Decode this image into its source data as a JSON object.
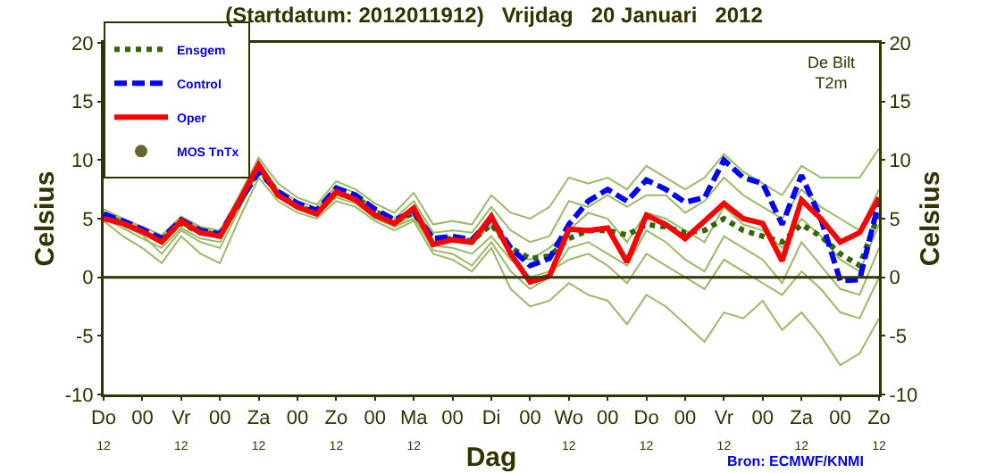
{
  "chart_data": {
    "type": "line",
    "title": "(Startdatum: 2012011912)   Vrijdag   20 Januari   2012",
    "xlabel": "Dag",
    "ylabel": "Celsius",
    "y2label": "Celsius",
    "annotations": [
      "De Bilt\nT2m",
      "Bron: ECMWF/KNMI"
    ],
    "categories": [
      "Do\n12",
      null,
      "00",
      null,
      "Vr\n12",
      null,
      "00",
      null,
      "Za\n12",
      null,
      "00",
      null,
      "Zo\n12",
      null,
      "00",
      null,
      "Ma\n12",
      null,
      "00",
      null,
      "Di",
      null,
      "00",
      null,
      "Wo\n12",
      null,
      "00",
      null,
      "Do\n12",
      null,
      "00",
      null,
      "Vr\n12",
      null,
      "00",
      null,
      "Za\n12",
      null,
      "00",
      null,
      "Zo\n12"
    ],
    "ylim": [
      -10,
      20
    ],
    "yticks": [
      -10,
      -5,
      0,
      5,
      10,
      15,
      20
    ],
    "y2lim": [
      -10,
      20
    ],
    "y2ticks": [
      -10,
      -5,
      0,
      5,
      10,
      15,
      20
    ],
    "ref_lines": [
      {
        "axis": "y",
        "value": 0,
        "label": null,
        "color": "#333300"
      }
    ],
    "grid": false,
    "legend": "top left",
    "marker": "none",
    "series": [
      {
        "color": "#99bb66",
        "line_style": "solid",
        "values": [
          5.8,
          5.0,
          4.3,
          3.6,
          5.2,
          4.3,
          4.0,
          7.0,
          10.2,
          8.0,
          6.8,
          6.2,
          8.2,
          7.5,
          6.3,
          5.5,
          7.2,
          4.5,
          4.8,
          4.5,
          7.0,
          5.5,
          5.0,
          6.0,
          8.5,
          8.0,
          8.5,
          7.5,
          9.5,
          8.5,
          7.5,
          8.5,
          10.5,
          9.0,
          8.0,
          7.0,
          9.5,
          8.5,
          8.5,
          8.5,
          11.0
        ]
      },
      {
        "color": "#99bb66",
        "line_style": "solid",
        "values": [
          4.8,
          3.5,
          2.5,
          1.2,
          3.5,
          2.0,
          1.2,
          5.0,
          8.5,
          6.5,
          5.5,
          5.0,
          6.5,
          6.0,
          4.8,
          4.0,
          4.8,
          2.0,
          1.5,
          0.5,
          2.5,
          -1.0,
          -2.5,
          -2.0,
          -0.5,
          -1.5,
          -2.0,
          -4.0,
          -1.5,
          -2.5,
          -4.0,
          -5.5,
          -3.0,
          -3.5,
          -2.0,
          -4.5,
          -3.0,
          -5.0,
          -7.5,
          -6.5,
          -3.5
        ]
      },
      {
        "color": "#99bb66",
        "line_style": "solid",
        "values": [
          5.5,
          4.8,
          4.0,
          3.4,
          5.0,
          4.2,
          3.8,
          6.8,
          9.8,
          7.5,
          6.5,
          5.9,
          7.8,
          7.2,
          5.8,
          5.0,
          6.5,
          3.8,
          4.0,
          3.8,
          6.0,
          4.0,
          3.0,
          3.5,
          6.5,
          6.0,
          7.0,
          6.0,
          7.0,
          7.0,
          5.5,
          6.5,
          8.5,
          7.0,
          6.0,
          5.0,
          7.5,
          6.0,
          5.0,
          4.0,
          7.5
        ]
      },
      {
        "color": "#99bb66",
        "line_style": "solid",
        "values": [
          5.0,
          4.2,
          3.3,
          2.5,
          4.2,
          3.3,
          3.0,
          6.0,
          9.0,
          6.8,
          5.8,
          5.2,
          6.8,
          6.3,
          5.0,
          4.3,
          5.0,
          2.7,
          2.5,
          2.0,
          3.5,
          1.5,
          0.0,
          0.5,
          1.5,
          2.0,
          1.0,
          -0.5,
          2.0,
          1.0,
          0.0,
          -1.0,
          1.5,
          0.5,
          -0.5,
          -1.5,
          0.5,
          -1.0,
          -3.0,
          -3.5,
          0.0
        ]
      },
      {
        "color": "#99bb66",
        "line_style": "solid",
        "values": [
          5.6,
          4.9,
          4.1,
          3.0,
          4.5,
          3.6,
          3.5,
          6.5,
          9.4,
          7.2,
          6.2,
          5.6,
          7.4,
          6.9,
          5.5,
          4.7,
          5.7,
          3.0,
          3.0,
          2.8,
          4.5,
          2.0,
          1.5,
          2.5,
          4.0,
          5.5,
          5.0,
          3.0,
          5.5,
          5.0,
          4.0,
          3.0,
          6.0,
          4.5,
          4.0,
          2.5,
          5.0,
          3.5,
          1.5,
          0.5,
          4.5
        ]
      },
      {
        "color": "#99bb66",
        "line_style": "solid",
        "values": [
          5.2,
          4.4,
          3.6,
          2.0,
          4.0,
          3.0,
          2.5,
          5.8,
          9.2,
          7.0,
          6.0,
          5.4,
          7.0,
          6.5,
          5.2,
          4.4,
          5.3,
          2.3,
          2.0,
          1.0,
          3.0,
          0.5,
          -1.0,
          0.0,
          2.5,
          3.0,
          2.0,
          1.0,
          4.0,
          3.0,
          1.5,
          0.5,
          3.5,
          2.5,
          1.5,
          -0.5,
          3.0,
          1.0,
          -1.0,
          -1.5,
          2.5
        ]
      },
      {
        "name": "Ensgem",
        "color": "#336600",
        "line_style": "dotted",
        "values": [
          5.3,
          4.6,
          3.9,
          3.2,
          4.6,
          3.8,
          3.6,
          6.3,
          9.2,
          7.2,
          6.0,
          5.6,
          7.2,
          6.8,
          5.6,
          4.8,
          5.5,
          3.2,
          3.3,
          3.1,
          4.5,
          2.5,
          1.6,
          1.8,
          3.3,
          4.0,
          4.0,
          3.6,
          4.5,
          4.3,
          3.8,
          4.0,
          5.0,
          4.0,
          3.5,
          3.0,
          4.5,
          3.5,
          2.0,
          1.0,
          5.5
        ]
      },
      {
        "name": "Control",
        "color": "#0000ff",
        "line_style": "dashed",
        "values": [
          5.4,
          4.8,
          4.1,
          3.3,
          4.9,
          4.0,
          3.7,
          6.4,
          9.0,
          7.3,
          6.3,
          5.7,
          7.6,
          7.0,
          5.8,
          4.9,
          5.6,
          3.3,
          3.5,
          3.2,
          5.0,
          2.5,
          1.0,
          1.6,
          4.5,
          6.5,
          7.5,
          6.5,
          8.3,
          7.5,
          6.4,
          6.8,
          10.0,
          8.5,
          8.0,
          4.5,
          8.7,
          5.0,
          -0.3,
          -0.2,
          6.5
        ]
      },
      {
        "name": "Oper",
        "color": "#ff0000",
        "line_style": "solid",
        "values": [
          5.0,
          4.6,
          3.9,
          3.0,
          4.8,
          3.8,
          3.5,
          6.5,
          9.6,
          7.0,
          6.0,
          5.4,
          7.3,
          6.6,
          5.3,
          4.6,
          5.9,
          2.8,
          3.2,
          3.0,
          5.2,
          2.0,
          -0.4,
          0.1,
          4.1,
          4.0,
          4.2,
          1.3,
          5.3,
          4.5,
          3.3,
          4.8,
          6.3,
          5.0,
          4.6,
          1.4,
          6.6,
          5.0,
          3.0,
          3.8,
          6.8
        ]
      },
      {
        "name": "MOS TnTx",
        "type": "scatter",
        "marker": "circle",
        "color": "#666633",
        "values": [
          null,
          null,
          null,
          null,
          null,
          null,
          null,
          null,
          null,
          null,
          null,
          null,
          null,
          null,
          null,
          null,
          null,
          null,
          null,
          null,
          null,
          null,
          null,
          null,
          null,
          null,
          null,
          null,
          null,
          null,
          null,
          null,
          null,
          null,
          null,
          null,
          null,
          null,
          null,
          null,
          null
        ]
      }
    ]
  }
}
